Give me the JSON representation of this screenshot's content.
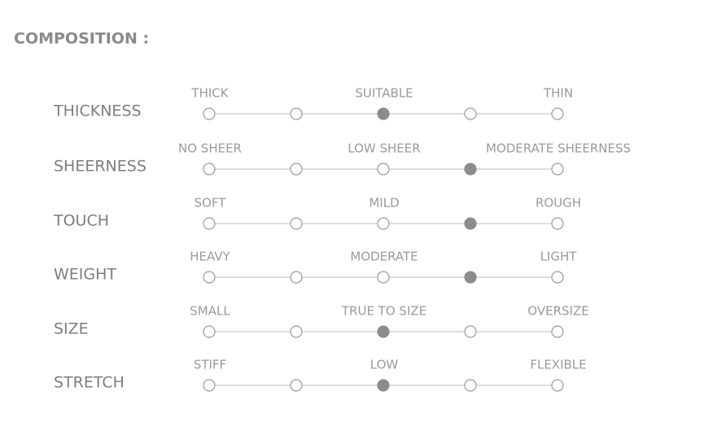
{
  "title": "COMPOSITION :",
  "rows": [
    {
      "label": "THICKNESS",
      "scale": [
        "THICK",
        "SUITABLE",
        "THIN"
      ],
      "level": 3
    },
    {
      "label": "SHEERNESS",
      "scale": [
        "NO SHEER",
        "LOW SHEER",
        "MODERATE SHEERNESS"
      ],
      "level": 4
    },
    {
      "label": "TOUCH",
      "scale": [
        "SOFT",
        "MILD",
        "ROUGH"
      ],
      "level": 4
    },
    {
      "label": "WEIGHT",
      "scale": [
        "HEAVY",
        "MODERATE",
        "LIGHT"
      ],
      "level": 4
    },
    {
      "label": "SIZE",
      "scale": [
        "SMALL",
        "TRUE TO SIZE",
        "OVERSIZE"
      ],
      "level": 3
    },
    {
      "label": "STRETCH",
      "scale": [
        "STIFF",
        "LOW",
        "FLEXIBLE"
      ],
      "level": 3
    }
  ]
}
